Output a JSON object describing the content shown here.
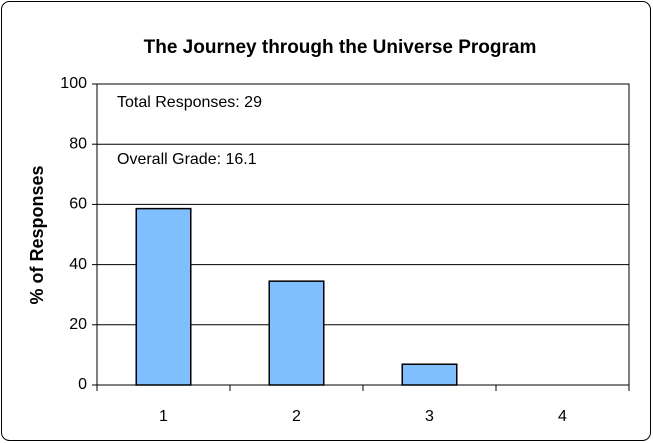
{
  "chart_data": {
    "type": "bar",
    "title": "The Journey through the Universe Program",
    "ylabel": "% of Responses",
    "annotations": [
      "Total Responses: 29",
      "Overall Grade: 16.1"
    ],
    "categories": [
      "1",
      "2",
      "3",
      "4"
    ],
    "values": [
      58.6,
      34.5,
      6.9,
      0
    ],
    "color": "#80bfff",
    "ylim": [
      0,
      100
    ],
    "yticks": [
      0,
      20,
      40,
      60,
      80,
      100
    ],
    "grid": true
  }
}
